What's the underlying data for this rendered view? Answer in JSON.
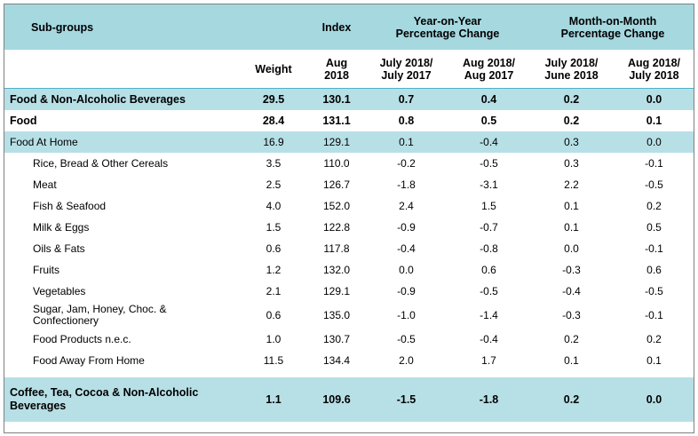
{
  "header": {
    "subgroups": "Sub-groups",
    "index": "Index",
    "yoy": "Year-on-Year Percentage Change",
    "mom": "Month-on-Month Percentage Change",
    "weight": "Weight",
    "aug2018": "Aug 2018",
    "jul18_jul17": "July 2018/ July 2017",
    "aug18_aug17": "Aug 2018/ Aug 2017",
    "jul18_jun18": "July 2018/ June 2018",
    "aug18_jul18": "Aug 2018/ July 2018"
  },
  "rows": [
    {
      "name": "Food & Non-Alcoholic Beverages",
      "weight": "29.5",
      "index": "130.1",
      "yoy1": "0.7",
      "yoy2": "0.4",
      "mom1": "0.2",
      "mom2": "0.0"
    },
    {
      "name": "Food",
      "weight": "28.4",
      "index": "131.1",
      "yoy1": "0.8",
      "yoy2": "0.5",
      "mom1": "0.2",
      "mom2": "0.1"
    },
    {
      "name": "Food At Home",
      "weight": "16.9",
      "index": "129.1",
      "yoy1": "0.1",
      "yoy2": "-0.4",
      "mom1": "0.3",
      "mom2": "0.0"
    },
    {
      "name": "Rice, Bread & Other Cereals",
      "weight": "3.5",
      "index": "110.0",
      "yoy1": "-0.2",
      "yoy2": "-0.5",
      "mom1": "0.3",
      "mom2": "-0.1"
    },
    {
      "name": "Meat",
      "weight": "2.5",
      "index": "126.7",
      "yoy1": "-1.8",
      "yoy2": "-3.1",
      "mom1": "2.2",
      "mom2": "-0.5"
    },
    {
      "name": "Fish & Seafood",
      "weight": "4.0",
      "index": "152.0",
      "yoy1": "2.4",
      "yoy2": "1.5",
      "mom1": "0.1",
      "mom2": "0.2"
    },
    {
      "name": "Milk & Eggs",
      "weight": "1.5",
      "index": "122.8",
      "yoy1": "-0.9",
      "yoy2": "-0.7",
      "mom1": "0.1",
      "mom2": "0.5"
    },
    {
      "name": "Oils & Fats",
      "weight": "0.6",
      "index": "117.8",
      "yoy1": "-0.4",
      "yoy2": "-0.8",
      "mom1": "0.0",
      "mom2": "-0.1"
    },
    {
      "name": "Fruits",
      "weight": "1.2",
      "index": "132.0",
      "yoy1": "0.0",
      "yoy2": "0.6",
      "mom1": "-0.3",
      "mom2": "0.6"
    },
    {
      "name": "Vegetables",
      "weight": "2.1",
      "index": "129.1",
      "yoy1": "-0.9",
      "yoy2": "-0.5",
      "mom1": "-0.4",
      "mom2": "-0.5"
    },
    {
      "name": "Sugar, Jam, Honey, Choc. & Confectionery",
      "weight": "0.6",
      "index": "135.0",
      "yoy1": "-1.0",
      "yoy2": "-1.4",
      "mom1": "-0.3",
      "mom2": "-0.1"
    },
    {
      "name": "Food Products n.e.c.",
      "weight": "1.0",
      "index": "130.7",
      "yoy1": "-0.5",
      "yoy2": "-0.4",
      "mom1": "0.2",
      "mom2": "0.2"
    },
    {
      "name": "Food Away From Home",
      "weight": "11.5",
      "index": "134.4",
      "yoy1": "2.0",
      "yoy2": "1.7",
      "mom1": "0.1",
      "mom2": "0.1"
    },
    {
      "name": "Coffee, Tea, Cocoa & Non-Alcoholic Beverages",
      "weight": "1.1",
      "index": "109.6",
      "yoy1": "-1.5",
      "yoy2": "-1.8",
      "mom1": "0.2",
      "mom2": "0.0"
    }
  ]
}
